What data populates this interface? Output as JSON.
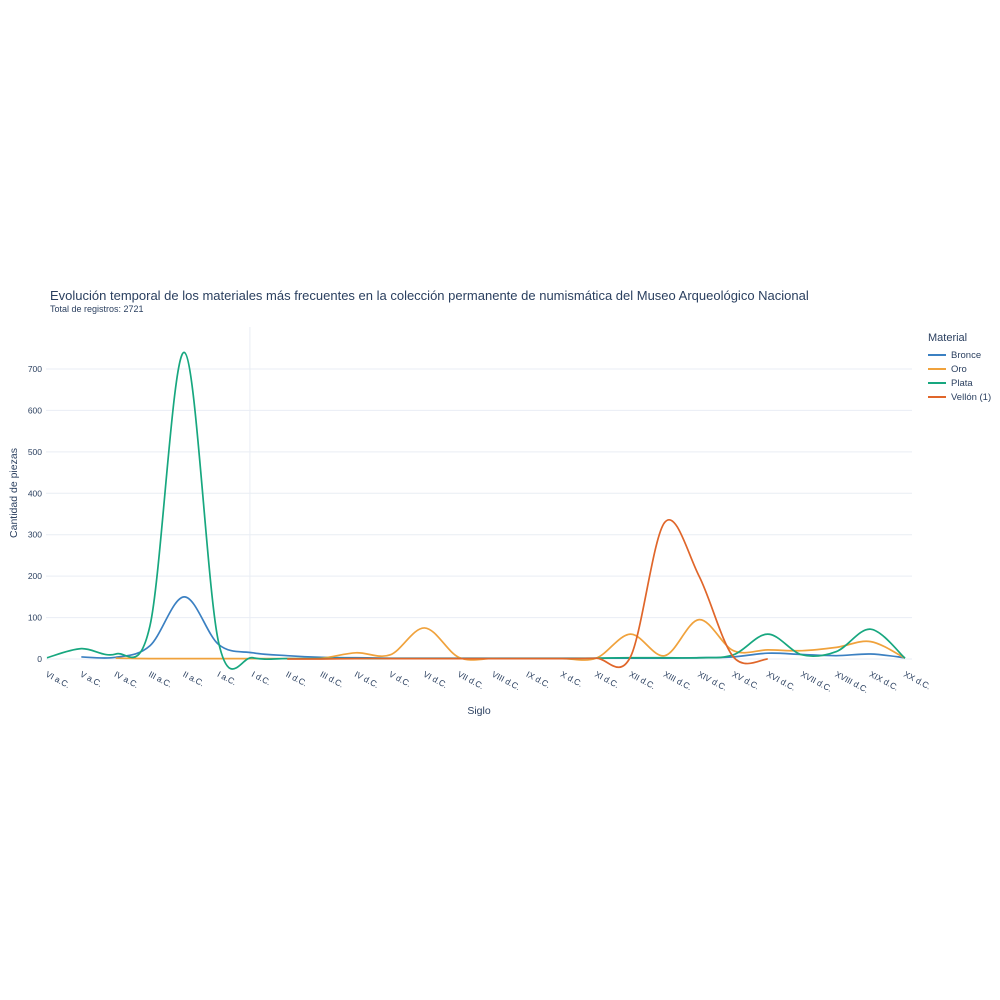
{
  "header": {
    "title": "Evolución temporal de los materiales más frecuentes en la colección permanente de numismática del Museo Arqueológico Nacional",
    "subtitle": "Total de registros: 2721"
  },
  "legend": {
    "title": "Material"
  },
  "axes": {
    "x_title": "Siglo",
    "y_title": "Cantidad de piezas",
    "y_ticks": [
      0,
      100,
      200,
      300,
      400,
      500,
      600,
      700
    ]
  },
  "colors": {
    "text": "#2a3f5f",
    "grid": "#e9edf4",
    "background": "#ffffff"
  },
  "chart_data": {
    "type": "line",
    "line_shape": "spline",
    "title": "Evolución temporal de los materiales más frecuentes en la colección permanente de numismática del Museo Arqueológico Nacional",
    "subtitle": "Total de registros: 2721",
    "xlabel": "Siglo",
    "ylabel": "Cantidad de piezas",
    "ylim": [
      0,
      780
    ],
    "grid": "horizontal",
    "legend_position": "right",
    "legend_title": "Material",
    "categories": [
      "VI a.C.",
      "V a.C.",
      "IV a.C.",
      "III a.C.",
      "II a.C.",
      "I a.C.",
      "I d.C.",
      "II d.C.",
      "III d.C.",
      "IV d.C.",
      "V d.C.",
      "VI d.C.",
      "VII d.C.",
      "VIII d.C.",
      "IX d.C.",
      "X d.C.",
      "XI d.C.",
      "XII d.C.",
      "XIII d.C.",
      "XIV d.C.",
      "XV d.C.",
      "XVI d.C.",
      "XVII d.C.",
      "XVIII d.C.",
      "XIX d.C.",
      "XX d.C."
    ],
    "era_divider_after_category": "I a.C.",
    "series": [
      {
        "name": "Bronce",
        "color": "#3b80c2",
        "start_index": 1,
        "values": [
          5,
          4,
          32,
          150,
          35,
          15,
          8,
          4,
          3,
          2,
          2,
          2,
          2,
          2,
          2,
          2,
          2,
          2,
          3,
          5,
          14,
          11,
          8,
          12,
          3
        ]
      },
      {
        "name": "Oro",
        "color": "#f0a23c",
        "start_index": 2,
        "values": [
          2,
          1,
          1,
          1,
          1,
          1,
          2,
          15,
          10,
          75,
          4,
          1,
          1,
          1,
          2,
          60,
          8,
          95,
          20,
          22,
          20,
          28,
          42,
          2
        ]
      },
      {
        "name": "Plata",
        "color": "#17a77f",
        "start_index": 0,
        "values": [
          3,
          25,
          12,
          80,
          740,
          40,
          3,
          1,
          1,
          1,
          1,
          1,
          1,
          1,
          1,
          1,
          2,
          3,
          3,
          3,
          10,
          60,
          10,
          18,
          72,
          2
        ]
      },
      {
        "name": "Vellón (1)",
        "color": "#e0662a",
        "start_index": 7,
        "values": [
          0,
          0,
          1,
          1,
          1,
          1,
          1,
          1,
          1,
          2,
          5,
          330,
          200,
          5,
          0
        ]
      }
    ]
  }
}
